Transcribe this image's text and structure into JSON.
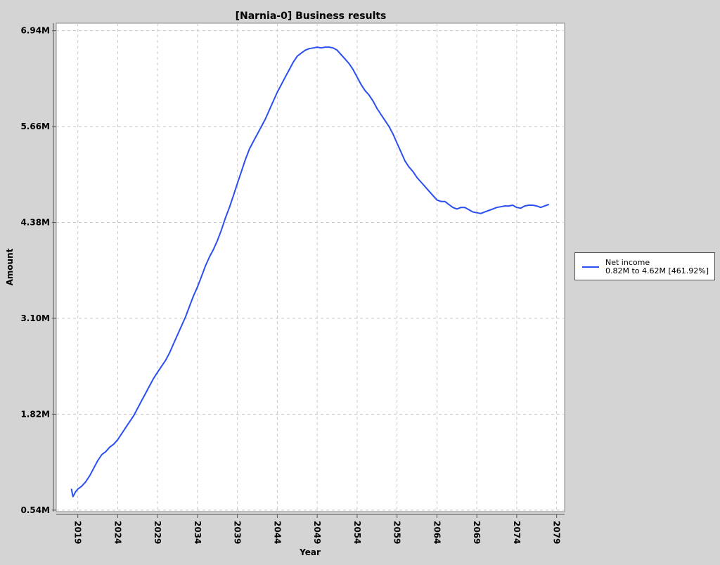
{
  "chart_data": {
    "type": "line",
    "title": "[Narnia-0] Business results",
    "xlabel": "Year",
    "ylabel": "Amount",
    "xlim": [
      2016.3,
      2080.0
    ],
    "ylim": [
      0.52,
      7.04
    ],
    "x_ticks": [
      "2019",
      "2024",
      "2029",
      "2034",
      "2039",
      "2044",
      "2049",
      "2054",
      "2059",
      "2064",
      "2069",
      "2074",
      "2079"
    ],
    "y_ticks": [
      "0.54M",
      "1.82M",
      "3.10M",
      "4.38M",
      "5.66M",
      "6.94M"
    ],
    "grid": true,
    "legend_position": "right",
    "colors": {
      "line": "#2a4ff0",
      "background": "#d4d4d4",
      "plot_background": "#ffffff",
      "grid": "#c8c8c8"
    },
    "series": [
      {
        "name": "Net income",
        "description": "0.82M to 4.62M [461.92%]",
        "x": [
          2018.2,
          2018.4,
          2018.7,
          2019.0,
          2019.5,
          2020.0,
          2020.5,
          2021.0,
          2021.5,
          2022.0,
          2022.5,
          2023.0,
          2023.5,
          2024.0,
          2024.5,
          2025.0,
          2025.5,
          2026.0,
          2026.5,
          2027.0,
          2027.5,
          2028.0,
          2028.5,
          2029.0,
          2029.5,
          2030.0,
          2030.5,
          2031.0,
          2031.5,
          2032.0,
          2032.5,
          2033.0,
          2033.5,
          2034.0,
          2034.5,
          2035.0,
          2035.5,
          2036.0,
          2036.5,
          2037.0,
          2037.5,
          2038.0,
          2038.5,
          2039.0,
          2039.5,
          2040.0,
          2040.5,
          2041.0,
          2041.5,
          2042.0,
          2042.5,
          2043.0,
          2043.5,
          2044.0,
          2044.5,
          2045.0,
          2045.5,
          2046.0,
          2046.5,
          2047.0,
          2047.5,
          2048.0,
          2048.5,
          2049.0,
          2049.5,
          2050.0,
          2050.5,
          2051.0,
          2051.5,
          2052.0,
          2052.5,
          2053.0,
          2053.5,
          2054.0,
          2054.5,
          2055.0,
          2055.5,
          2056.0,
          2056.5,
          2057.0,
          2057.5,
          2058.0,
          2058.5,
          2059.0,
          2059.5,
          2060.0,
          2060.5,
          2061.0,
          2061.5,
          2062.0,
          2062.5,
          2063.0,
          2063.5,
          2064.0,
          2064.5,
          2065.0,
          2065.5,
          2066.0,
          2066.5,
          2067.0,
          2067.5,
          2068.0,
          2068.5,
          2069.0,
          2069.5,
          2070.0,
          2070.5,
          2071.0,
          2071.5,
          2072.0,
          2072.5,
          2073.0,
          2073.5,
          2074.0,
          2074.5,
          2075.0,
          2075.5,
          2076.0,
          2076.5,
          2077.0,
          2077.5,
          2078.0
        ],
        "values": [
          0.82,
          0.72,
          0.78,
          0.82,
          0.86,
          0.92,
          1.0,
          1.1,
          1.2,
          1.28,
          1.32,
          1.38,
          1.42,
          1.48,
          1.56,
          1.64,
          1.72,
          1.8,
          1.9,
          2.0,
          2.1,
          2.2,
          2.3,
          2.38,
          2.46,
          2.54,
          2.64,
          2.76,
          2.88,
          3.0,
          3.12,
          3.26,
          3.4,
          3.52,
          3.66,
          3.8,
          3.92,
          4.02,
          4.14,
          4.28,
          4.44,
          4.58,
          4.74,
          4.9,
          5.06,
          5.22,
          5.36,
          5.46,
          5.56,
          5.66,
          5.76,
          5.88,
          6.0,
          6.12,
          6.22,
          6.32,
          6.42,
          6.52,
          6.6,
          6.64,
          6.68,
          6.7,
          6.71,
          6.72,
          6.71,
          6.72,
          6.72,
          6.71,
          6.68,
          6.62,
          6.56,
          6.5,
          6.42,
          6.32,
          6.22,
          6.14,
          6.08,
          6.0,
          5.9,
          5.82,
          5.74,
          5.66,
          5.56,
          5.44,
          5.32,
          5.2,
          5.12,
          5.06,
          4.98,
          4.92,
          4.86,
          4.8,
          4.74,
          4.68,
          4.66,
          4.66,
          4.62,
          4.58,
          4.56,
          4.58,
          4.58,
          4.55,
          4.52,
          4.51,
          4.5,
          4.52,
          4.54,
          4.56,
          4.58,
          4.59,
          4.6,
          4.6,
          4.61,
          4.58,
          4.57,
          4.6,
          4.61,
          4.61,
          4.6,
          4.58,
          4.6,
          4.62
        ]
      }
    ]
  }
}
